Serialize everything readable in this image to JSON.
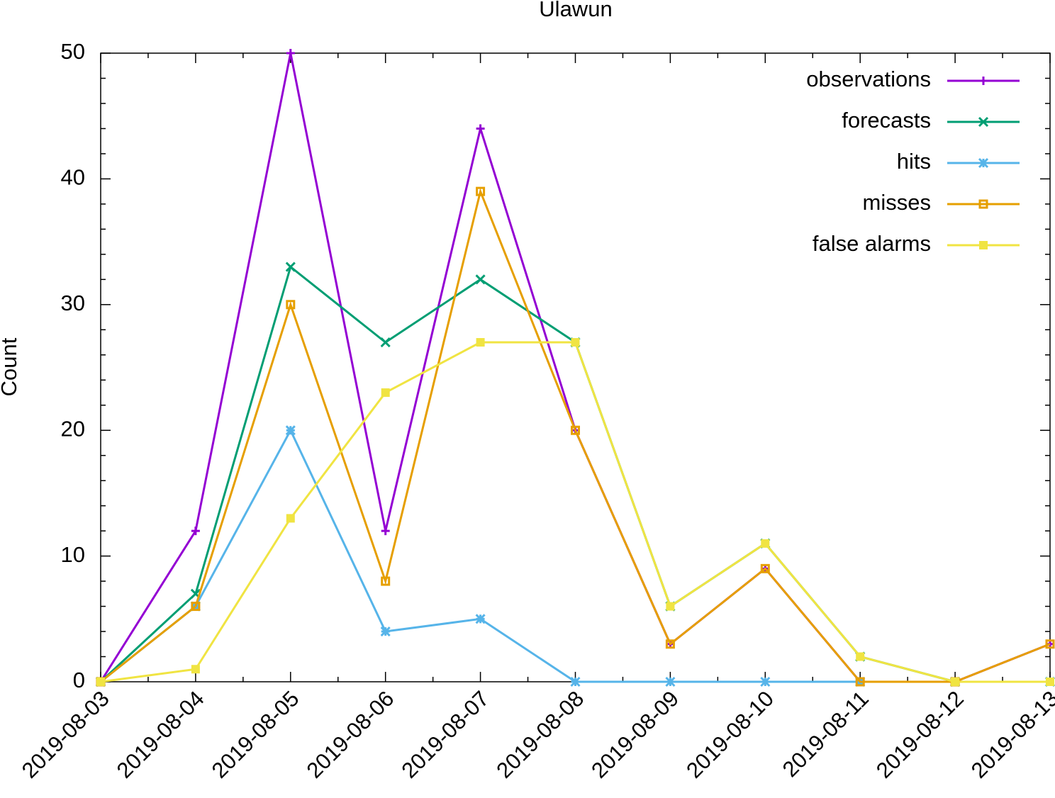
{
  "chart_data": {
    "type": "line",
    "title": "Ulawun",
    "y_label": "Count",
    "categories": [
      "2019-08-03",
      "2019-08-04",
      "2019-08-05",
      "2019-08-06",
      "2019-08-07",
      "2019-08-08",
      "2019-08-09",
      "2019-08-10",
      "2019-08-11",
      "2019-08-12",
      "2019-08-13"
    ],
    "series": [
      {
        "name": "observations",
        "color": "#9400d3",
        "marker": "plus",
        "values": [
          0,
          12,
          50,
          12,
          44,
          20,
          3,
          9,
          0,
          0,
          3
        ]
      },
      {
        "name": "forecasts",
        "color": "#009e73",
        "marker": "cross",
        "values": [
          0,
          7,
          33,
          27,
          32,
          27,
          6,
          11,
          2,
          0,
          0
        ]
      },
      {
        "name": "hits",
        "color": "#56b4e9",
        "marker": "star",
        "values": [
          0,
          6,
          20,
          4,
          5,
          0,
          0,
          0,
          0,
          0,
          0
        ]
      },
      {
        "name": "misses",
        "color": "#e69f00",
        "marker": "open-square",
        "values": [
          0,
          6,
          30,
          8,
          39,
          20,
          3,
          9,
          0,
          0,
          3
        ]
      },
      {
        "name": "false alarms",
        "color": "#f0e442",
        "marker": "filled-square",
        "values": [
          0,
          1,
          13,
          23,
          27,
          27,
          6,
          11,
          2,
          0,
          0
        ]
      }
    ],
    "ylim": [
      0,
      50
    ],
    "yticks": [
      0,
      10,
      20,
      30,
      40,
      50
    ],
    "grid": false,
    "legend": "top right"
  }
}
